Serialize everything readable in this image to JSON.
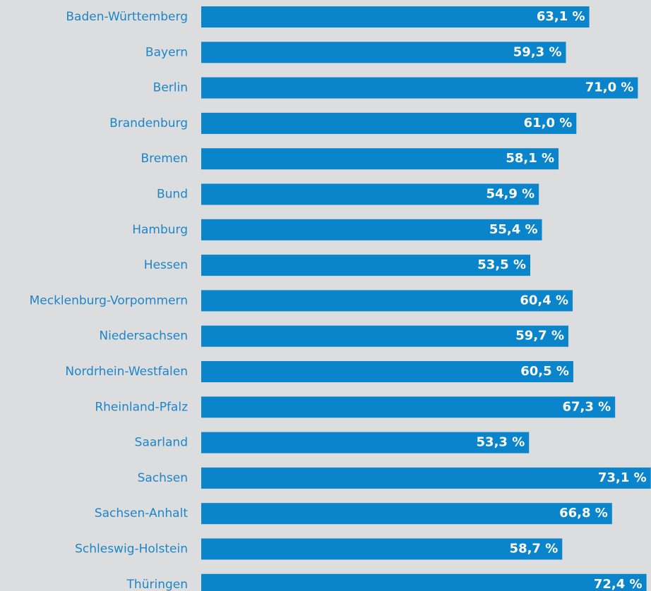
{
  "chart_data": {
    "type": "bar",
    "orientation": "horizontal",
    "color": "#0a85cb",
    "label_color": "#1d86c8",
    "background": "#dcdddf",
    "categories": [
      "Baden-Württemberg",
      "Bayern",
      "Berlin",
      "Brandenburg",
      "Bremen",
      "Bund",
      "Hamburg",
      "Hessen",
      "Mecklenburg-Vorpommern",
      "Niedersachsen",
      "Nordrhein-Westfalen",
      "Rheinland-Pfalz",
      "Saarland",
      "Sachsen",
      "Sachsen-Anhalt",
      "Schleswig-Holstein",
      "Thüringen"
    ],
    "values": [
      63.1,
      59.3,
      71.0,
      61.0,
      58.1,
      54.9,
      55.4,
      53.5,
      60.4,
      59.7,
      60.5,
      67.3,
      53.3,
      73.1,
      66.8,
      58.7,
      72.4
    ],
    "value_labels": [
      "63,1 %",
      "59,3 %",
      "71,0 %",
      "61,0 %",
      "58,1 %",
      "54,9 %",
      "55,4 %",
      "53,5 %",
      "60,4 %",
      "59,7 %",
      "60,5 %",
      "67,3 %",
      "53,3 %",
      "73,1 %",
      "66,8 %",
      "58,7 %",
      "72,4 %"
    ]
  }
}
